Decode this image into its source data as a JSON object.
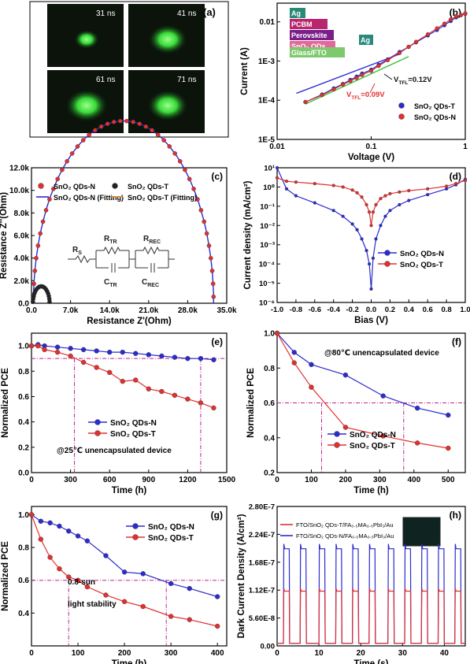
{
  "panel_a": {
    "label": "(a)",
    "frames": [
      {
        "time": "31 ns",
        "spot": 0.35
      },
      {
        "time": "41 ns",
        "spot": 0.75
      },
      {
        "time": "61 ns",
        "spot": 0.85
      },
      {
        "time": "71 ns",
        "spot": 0.8
      }
    ]
  },
  "chart_data": [
    {
      "id": "b",
      "label": "(b)",
      "type": "line",
      "xlabel": "Voltage (V)",
      "ylabel": "Current (A)",
      "xscale": "log",
      "yscale": "log",
      "xlim": [
        0.01,
        1
      ],
      "ylim": [
        1e-05,
        0.03
      ],
      "xticks": [
        0.01,
        0.1,
        1
      ],
      "xticklabels": [
        "0.01",
        "0.1",
        "1"
      ],
      "yticks": [
        1e-05,
        0.0001,
        0.001,
        0.01
      ],
      "yticklabels": [
        "1E-5",
        "1E-4",
        "1E-3",
        "0.01"
      ],
      "colors": [
        "#2b2bd1",
        "#e23030"
      ],
      "series": [
        {
          "name": "SnO₂ QDs-T",
          "x": [
            0.02,
            0.03,
            0.04,
            0.05,
            0.06,
            0.07,
            0.08,
            0.1,
            0.12,
            0.15,
            0.2,
            0.25,
            0.3,
            0.4,
            0.5,
            0.6,
            0.7,
            0.8,
            0.9,
            1.0
          ],
          "y": [
            9e-05,
            0.00014,
            0.0002,
            0.00026,
            0.00033,
            0.0004,
            0.00048,
            0.0006,
            0.0008,
            0.0011,
            0.0017,
            0.0023,
            0.003,
            0.0045,
            0.0062,
            0.0082,
            0.0105,
            0.013,
            0.0148,
            0.016
          ]
        },
        {
          "name": "SnO₂ QDs-N",
          "x": [
            0.02,
            0.03,
            0.04,
            0.05,
            0.06,
            0.07,
            0.08,
            0.1,
            0.12,
            0.15,
            0.2,
            0.25,
            0.3,
            0.4,
            0.5,
            0.6,
            0.7,
            0.8,
            0.9,
            1.0
          ],
          "y": [
            9e-05,
            0.000135,
            0.00019,
            0.00025,
            0.00031,
            0.00037,
            0.00044,
            0.00056,
            0.00075,
            0.00105,
            0.0016,
            0.0023,
            0.0031,
            0.0048,
            0.0068,
            0.009,
            0.0115,
            0.0138,
            0.015,
            0.0165
          ]
        }
      ],
      "annotations": [
        "V",
        "TFL",
        "=0.12V",
        "V",
        "TFL",
        "=0.09V"
      ],
      "layers": [
        "Ag",
        "PCBM",
        "Perovskite",
        "SnO₂ QDs",
        "Ag",
        "Glass/FTO"
      ]
    },
    {
      "id": "c",
      "label": "(c)",
      "type": "scatter",
      "xlabel": "Resistance Z'(Ohm)",
      "ylabel": "Resistance Z''(Ohm)",
      "xlim": [
        0,
        35000
      ],
      "ylim": [
        0,
        12000
      ],
      "xticklabels": [
        "0.0",
        "7.0k",
        "14.0k",
        "21.0k",
        "28.0k",
        "35.0k"
      ],
      "yticklabels": [
        "0.0",
        "2.0k",
        "4.0k",
        "6.0k",
        "8.0k",
        "10.0k",
        "12.0k"
      ],
      "legend": [
        "SnO₂ QDs-N",
        "SnO₂ QDs-T",
        "SnO₂ QDs-N (Fitting)",
        "SnO₂ QDs-T (Fitting)"
      ],
      "colors": [
        "#e23030",
        "#222222",
        "#2b2bd1",
        "#e08a3a"
      ],
      "arc_N": {
        "r0": 350,
        "diameter": 32300,
        "points": 44
      },
      "arc_T": {
        "r0": 250,
        "diameter": 3000,
        "points": 18
      },
      "circuit": [
        "R",
        "S",
        "R",
        "TR",
        "R",
        "REC",
        "C",
        "TR",
        "C",
        "REC"
      ]
    },
    {
      "id": "d",
      "label": "(d)",
      "type": "line",
      "xlabel": "Bias (V)",
      "ylabel": "Current density (mA/cm²)",
      "xlim": [
        -1.0,
        1.0
      ],
      "yscale": "log",
      "ylim": [
        1e-06,
        10
      ],
      "xticklabels": [
        "-1.0",
        "-0.8",
        "-0.6",
        "-0.4",
        "-0.2",
        "0.0",
        "0.2",
        "0.4",
        "0.6",
        "0.8",
        "1.0"
      ],
      "yticklabels": [
        "10⁻⁶",
        "10⁻⁵",
        "10⁻⁴",
        "10⁻³",
        "10⁻²",
        "10⁻¹",
        "10⁰",
        "10¹"
      ],
      "colors": [
        "#2b2bd1",
        "#e23030"
      ],
      "series": [
        {
          "name": "SnO₂ QDs-N",
          "x": [
            -1.0,
            -0.9,
            -0.8,
            -0.6,
            -0.4,
            -0.3,
            -0.2,
            -0.15,
            -0.1,
            -0.05,
            -0.02,
            0.0,
            0.02,
            0.05,
            0.1,
            0.15,
            0.2,
            0.3,
            0.4,
            0.6,
            0.8,
            0.9,
            1.0
          ],
          "y": [
            10,
            0.8,
            0.35,
            0.15,
            0.06,
            0.03,
            0.012,
            0.006,
            0.002,
            0.0005,
            0.0001,
            5e-06,
            0.0002,
            0.002,
            0.01,
            0.03,
            0.06,
            0.12,
            0.2,
            0.4,
            0.8,
            1.3,
            2.5
          ]
        },
        {
          "name": "SnO₂ QDs-T",
          "x": [
            -1.0,
            -0.9,
            -0.8,
            -0.6,
            -0.4,
            -0.3,
            -0.2,
            -0.15,
            -0.1,
            -0.05,
            -0.02,
            0.0,
            0.02,
            0.05,
            0.1,
            0.15,
            0.2,
            0.3,
            0.4,
            0.6,
            0.8,
            0.9,
            1.0
          ],
          "y": [
            3,
            2,
            1.8,
            1.5,
            1.2,
            1.0,
            0.7,
            0.5,
            0.3,
            0.12,
            0.05,
            0.01,
            0.05,
            0.12,
            0.25,
            0.35,
            0.45,
            0.55,
            0.65,
            0.8,
            1.1,
            1.5,
            2.2
          ]
        }
      ]
    },
    {
      "id": "e",
      "label": "(e)",
      "type": "line",
      "xlabel": "Time (h)",
      "ylabel": "Normalized PCE",
      "xlim": [
        0,
        1500
      ],
      "ylim": [
        0.0,
        1.1
      ],
      "xticks": [
        0,
        300,
        600,
        900,
        1200,
        1500
      ],
      "yticks": [
        0.0,
        0.2,
        0.4,
        0.6,
        0.8,
        1.0
      ],
      "colors": [
        "#2b2bd1",
        "#e23030"
      ],
      "series": [
        {
          "name": "SnO₂ QDs-N",
          "x": [
            0,
            50,
            100,
            200,
            300,
            400,
            500,
            600,
            700,
            800,
            900,
            1000,
            1100,
            1200,
            1300,
            1400
          ],
          "y": [
            1.0,
            1.01,
            1.0,
            0.99,
            0.98,
            0.97,
            0.96,
            0.95,
            0.95,
            0.94,
            0.93,
            0.92,
            0.91,
            0.9,
            0.9,
            0.89
          ]
        },
        {
          "name": "SnO₂ QDs-T",
          "x": [
            0,
            50,
            100,
            200,
            300,
            400,
            500,
            600,
            700,
            800,
            900,
            1000,
            1100,
            1200,
            1300,
            1400
          ],
          "y": [
            1.0,
            1.0,
            0.97,
            0.95,
            0.92,
            0.87,
            0.83,
            0.79,
            0.72,
            0.73,
            0.66,
            0.64,
            0.61,
            0.58,
            0.55,
            0.51
          ]
        }
      ],
      "reference": {
        "y": 0.9,
        "x_marks": [
          330,
          1300
        ]
      },
      "note": "@25℃ unencapsulated device"
    },
    {
      "id": "f",
      "label": "(f)",
      "type": "line",
      "xlabel": "Time (h)",
      "ylabel": "Normalized PCE",
      "xlim": [
        0,
        550
      ],
      "ylim": [
        0.2,
        1.0
      ],
      "xticks": [
        0,
        100,
        200,
        300,
        400,
        500
      ],
      "yticks": [
        0.2,
        0.4,
        0.6,
        0.8,
        1.0
      ],
      "colors": [
        "#2b2bd1",
        "#e23030"
      ],
      "series": [
        {
          "name": "SnO₂ QDs-N",
          "x": [
            0,
            50,
            100,
            200,
            310,
            410,
            500
          ],
          "y": [
            1.0,
            0.89,
            0.82,
            0.76,
            0.64,
            0.57,
            0.53
          ]
        },
        {
          "name": "SnO₂ QDs-T",
          "x": [
            0,
            50,
            100,
            200,
            310,
            410,
            500
          ],
          "y": [
            1.0,
            0.83,
            0.69,
            0.46,
            0.41,
            0.37,
            0.34
          ]
        }
      ],
      "reference": {
        "y": 0.6,
        "x_marks": [
          130,
          370
        ]
      },
      "note": "@80℃ unencapsulated device"
    },
    {
      "id": "g",
      "label": "(g)",
      "type": "line",
      "xlabel": "Time (h)",
      "ylabel": "Normalized PCE",
      "xlim": [
        0,
        420
      ],
      "ylim": [
        0.2,
        1.05
      ],
      "xticks": [
        0,
        100,
        200,
        300,
        400
      ],
      "yticks": [
        0.4,
        0.6,
        0.8,
        1.0
      ],
      "colors": [
        "#2b2bd1",
        "#e23030"
      ],
      "series": [
        {
          "name": "SnO₂ QDs-N",
          "x": [
            0,
            20,
            40,
            60,
            80,
            100,
            120,
            160,
            200,
            240,
            300,
            340,
            400
          ],
          "y": [
            1.0,
            0.96,
            0.95,
            0.93,
            0.9,
            0.87,
            0.84,
            0.75,
            0.65,
            0.64,
            0.58,
            0.55,
            0.5
          ]
        },
        {
          "name": "SnO₂ QDs-T",
          "x": [
            0,
            20,
            40,
            60,
            80,
            100,
            120,
            160,
            200,
            240,
            300,
            340,
            400
          ],
          "y": [
            1.0,
            0.85,
            0.74,
            0.67,
            0.62,
            0.6,
            0.56,
            0.51,
            0.47,
            0.44,
            0.38,
            0.36,
            0.32
          ]
        }
      ],
      "reference": {
        "y": 0.6,
        "x_marks": [
          80,
          290
        ]
      },
      "notes": [
        "0.8-sun",
        "light stability"
      ]
    },
    {
      "id": "h",
      "label": "(h)",
      "type": "line",
      "xlabel": "Time (s)",
      "ylabel": "Dark Current Density (A/cm²)",
      "xlim": [
        0,
        45
      ],
      "ylim": [
        0,
        2.8e-07
      ],
      "xticks": [
        0,
        10,
        20,
        30,
        40
      ],
      "yticks": [
        0,
        5.6e-08,
        1.12e-07,
        1.68e-07,
        2.24e-07,
        2.8e-07
      ],
      "yticklabels": [
        "0.00",
        "5.60E-8",
        "1.12E-7",
        "1.68E-7",
        "2.24E-7",
        "2.80E-7"
      ],
      "colors": [
        "#e23030",
        "#2b2bd1"
      ],
      "series": [
        {
          "name": "FTO/SnO₂ QDs-T/FA₀.₅MA₀.₅PbI₃/Au",
          "pulse_on": 1.1e-07,
          "baseline": 5e-09
        },
        {
          "name": "FTO/SnO₂ QDs-N/FA₀.₅MA₀.₅PbI₃/Au",
          "pulse_on": 1.95e-07,
          "baseline": 5e-09
        }
      ],
      "pulse_starts": [
        1.5,
        5.5,
        10,
        14,
        18,
        22,
        26.5,
        30.5,
        34.5,
        38.5,
        42.5
      ],
      "pulse_width": 1.5
    }
  ]
}
